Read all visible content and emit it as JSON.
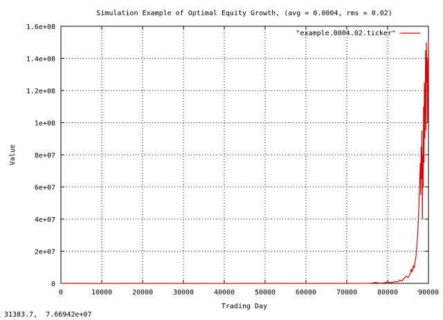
{
  "status_readout": "31383.7,  7.66942e+07",
  "chart_data": {
    "type": "line",
    "title": "Simulation Example of Optimal Equity Growth, (avg = 0.0004, rms = 0.02)",
    "xlabel": "Trading Day",
    "ylabel": "Value",
    "xlim": [
      0,
      90000
    ],
    "ylim": [
      0,
      160000000
    ],
    "x_ticks": [
      0,
      10000,
      20000,
      30000,
      40000,
      50000,
      60000,
      70000,
      80000,
      90000
    ],
    "x_tick_labels": [
      "0",
      "10000",
      "20000",
      "30000",
      "40000",
      "50000",
      "60000",
      "70000",
      "80000",
      "90000"
    ],
    "y_ticks": [
      0,
      20000000,
      40000000,
      60000000,
      80000000,
      100000000,
      120000000,
      140000000,
      160000000
    ],
    "y_tick_labels": [
      "0",
      "2e+07",
      "4e+07",
      "6e+07",
      "8e+07",
      "1e+08",
      "1.2e+08",
      "1.4e+08",
      "1.6e+08"
    ],
    "grid": true,
    "legend_position": "top-right",
    "series": [
      {
        "name": "\"example.0004.02.ticker\"",
        "color": "#e00000",
        "x": [
          0,
          20000,
          40000,
          60000,
          70000,
          75000,
          76000,
          77000,
          78000,
          79000,
          80000,
          81000,
          82000,
          82500,
          83000,
          83500,
          84000,
          84500,
          85000,
          85500,
          85800,
          86000,
          86300,
          86500,
          86700,
          87000,
          87200,
          87400,
          87600,
          87800,
          88000,
          88100,
          88200,
          88300,
          88400,
          88500,
          88600,
          88700,
          88800,
          88900,
          89000,
          89100,
          89200,
          89300,
          89400,
          89500,
          89600,
          89700,
          89800,
          89900,
          90000
        ],
        "y": [
          1,
          3,
          40,
          500,
          5000,
          30000,
          100000,
          600000,
          150000,
          300000,
          800000,
          500000,
          1200000,
          900000,
          2000000,
          1500000,
          3000000,
          4500000,
          3500000,
          6000000,
          9000000,
          7000000,
          11000000,
          9500000,
          13000000,
          18000000,
          25000000,
          32000000,
          45000000,
          60000000,
          75000000,
          55000000,
          85000000,
          65000000,
          95000000,
          40000000,
          80000000,
          60000000,
          110000000,
          75000000,
          125000000,
          90000000,
          115000000,
          145000000,
          95000000,
          150000000,
          125000000,
          140000000,
          100000000,
          130000000,
          151000000
        ]
      }
    ]
  }
}
